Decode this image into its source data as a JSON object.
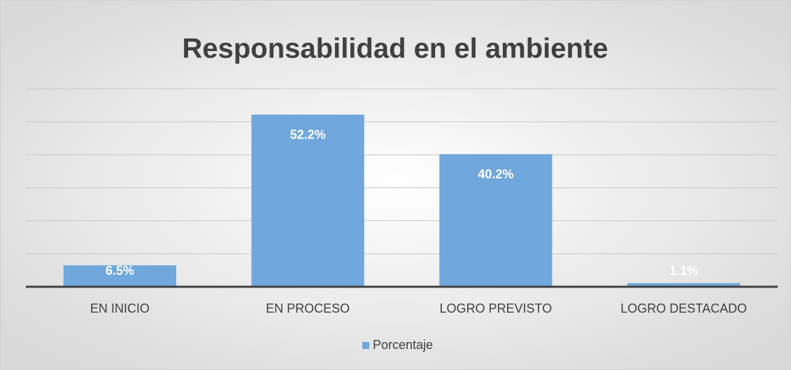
{
  "chart_data": {
    "type": "bar",
    "title": "Responsabilidad en el ambiente",
    "categories": [
      "EN INICIO",
      "EN PROCESO",
      "LOGRO PREVISTO",
      "LOGRO DESTACADO"
    ],
    "series": [
      {
        "name": "Porcentaje",
        "color": "#70a7dc",
        "values": [
          6.5,
          52.2,
          40.2,
          1.1
        ],
        "value_labels": [
          "6.5%",
          "52.2%",
          "40.2%",
          "1.1%"
        ]
      }
    ],
    "ylim": [
      0,
      60
    ],
    "yticks": [
      0,
      10,
      20,
      30,
      40,
      50,
      60
    ],
    "grid": true,
    "legend": "bottom"
  }
}
